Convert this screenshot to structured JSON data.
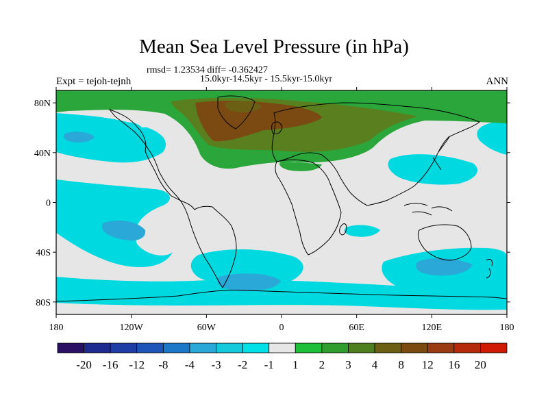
{
  "title": "Mean Sea Level Pressure (in hPa)",
  "stats": "rmsd= 1.23534 diff= -0.362427",
  "subtitle": "15.0kyr-14.5kyr - 15.5kyr-15.0kyr",
  "experiment": "Expt = tejoh-tejnh",
  "season": "ANN",
  "map": {
    "lon_range": [
      -180,
      180
    ],
    "lat_range": [
      -90,
      90
    ],
    "lat_ticks": [
      {
        "lat": 80,
        "label": "80N"
      },
      {
        "lat": 40,
        "label": "40N"
      },
      {
        "lat": 0,
        "label": "0"
      },
      {
        "lat": -40,
        "label": "40S"
      },
      {
        "lat": -80,
        "label": "80S"
      }
    ],
    "lon_ticks": [
      {
        "lon": -180,
        "label": "180"
      },
      {
        "lon": -120,
        "label": "120W"
      },
      {
        "lon": -60,
        "label": "60W"
      },
      {
        "lon": 0,
        "label": "0"
      },
      {
        "lon": 60,
        "label": "60E"
      },
      {
        "lon": 120,
        "label": "120E"
      },
      {
        "lon": 180,
        "label": "180"
      }
    ],
    "field_description": "MSLP difference anomaly"
  },
  "colorbar": {
    "colors": [
      "#2b0f63",
      "#1e2a8e",
      "#1f3ea5",
      "#1d56b8",
      "#1b78c8",
      "#2aa9d8",
      "#13c9dc",
      "#00e0e6",
      "#e6e6e6",
      "#1fbf3a",
      "#2f9e2c",
      "#4e7f1e",
      "#6b5f14",
      "#7a4a10",
      "#9a3a10",
      "#b42a0a",
      "#d01a06"
    ],
    "labels": [
      "-20",
      "-16",
      "-12",
      "-8",
      "-4",
      "-3",
      "-2",
      "-1",
      "1",
      "2",
      "3",
      "4",
      "8",
      "12",
      "16",
      "20"
    ]
  },
  "palette": {
    "neutral": "#e6e6e6",
    "cyan": "#00d9e0",
    "mid_blue": "#2aa9d8",
    "green": "#2aa63a",
    "olive": "#5a7f1e",
    "brown": "#7a4a12"
  }
}
